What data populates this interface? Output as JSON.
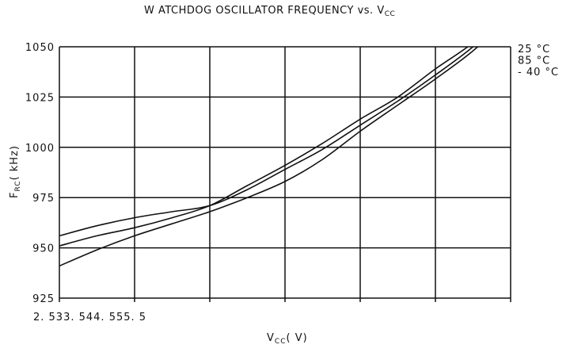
{
  "chart_data": {
    "type": "line",
    "title": "W ATCHDOG OSCILLATOR FREQUENCY vs. V",
    "title_subscript": "CC",
    "xlabel_main": "V",
    "xlabel_sub": "CC",
    "xlabel_unit": "( V)",
    "ylabel_main": "F",
    "ylabel_sub": "RC",
    "ylabel_unit": "( kHz)",
    "xtick_label_text": "2. 533. 544. 555. 5",
    "x": [
      2.5,
      3.0,
      3.5,
      4.0,
      4.5,
      5.0,
      5.5
    ],
    "xlim": [
      2.5,
      5.5
    ],
    "ylim": [
      925,
      1050
    ],
    "yticks": [
      925,
      950,
      975,
      1000,
      1025,
      1050
    ],
    "yticks_labels": [
      "925",
      "950",
      "975",
      "1000",
      "1025",
      "1050"
    ],
    "grid": true,
    "legend_position": "right",
    "series": [
      {
        "name": "25 °C",
        "legend_label": "25  °C",
        "x": [
          2.5,
          2.75,
          3.0,
          3.25,
          3.5,
          3.75,
          4.0,
          4.25,
          4.5,
          4.75,
          5.0,
          5.25,
          5.5
        ],
        "values": [
          951,
          956,
          960,
          965,
          971,
          981,
          991,
          1002,
          1014,
          1025,
          1039,
          1052,
          1069
        ]
      },
      {
        "name": "85 °C",
        "legend_label": "85  °C",
        "x": [
          2.5,
          2.75,
          3.0,
          3.25,
          3.5,
          3.75,
          4.0,
          4.25,
          4.5,
          4.75,
          5.0,
          5.25,
          5.5
        ],
        "values": [
          956,
          961,
          965,
          968,
          971,
          979,
          989,
          999,
          1011,
          1023,
          1036,
          1050,
          1067
        ]
      },
      {
        "name": "-40 °C",
        "legend_label": "- 40  °C",
        "x": [
          2.5,
          2.75,
          3.0,
          3.25,
          3.5,
          3.75,
          4.0,
          4.25,
          4.5,
          4.75,
          5.0,
          5.25,
          5.5
        ],
        "values": [
          941,
          949,
          956,
          962,
          968,
          975,
          983,
          994,
          1008,
          1021,
          1034,
          1048,
          1065
        ]
      }
    ]
  }
}
